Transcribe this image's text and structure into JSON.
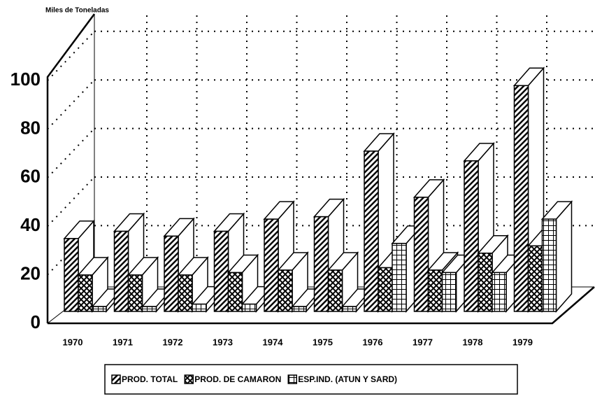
{
  "chart_data": {
    "type": "bar3d",
    "ylabel": "Miles de Toneladas",
    "categories": [
      "1970",
      "1971",
      "1972",
      "1973",
      "1974",
      "1975",
      "1976",
      "1977",
      "1978",
      "1979"
    ],
    "series": [
      {
        "name": "PROD. TOTAL",
        "color": "#000000",
        "pattern": "diagonal",
        "values": [
          30,
          33,
          31,
          33,
          38,
          39,
          66,
          47,
          62,
          93
        ]
      },
      {
        "name": "PROD. DE CAMARON",
        "color": "#000000",
        "pattern": "cross",
        "values": [
          15,
          15,
          15,
          16,
          17,
          17,
          18,
          17,
          24,
          27
        ]
      },
      {
        "name": "ESP.IND. (ATUN Y SARD)",
        "color": "#000000",
        "pattern": "grid",
        "values": [
          2,
          2,
          3,
          3,
          2,
          2,
          28,
          16,
          16,
          38
        ]
      }
    ],
    "ylim": [
      0,
      100
    ],
    "yticks": [
      0,
      20,
      40,
      60,
      80,
      100
    ],
    "grid": true
  }
}
